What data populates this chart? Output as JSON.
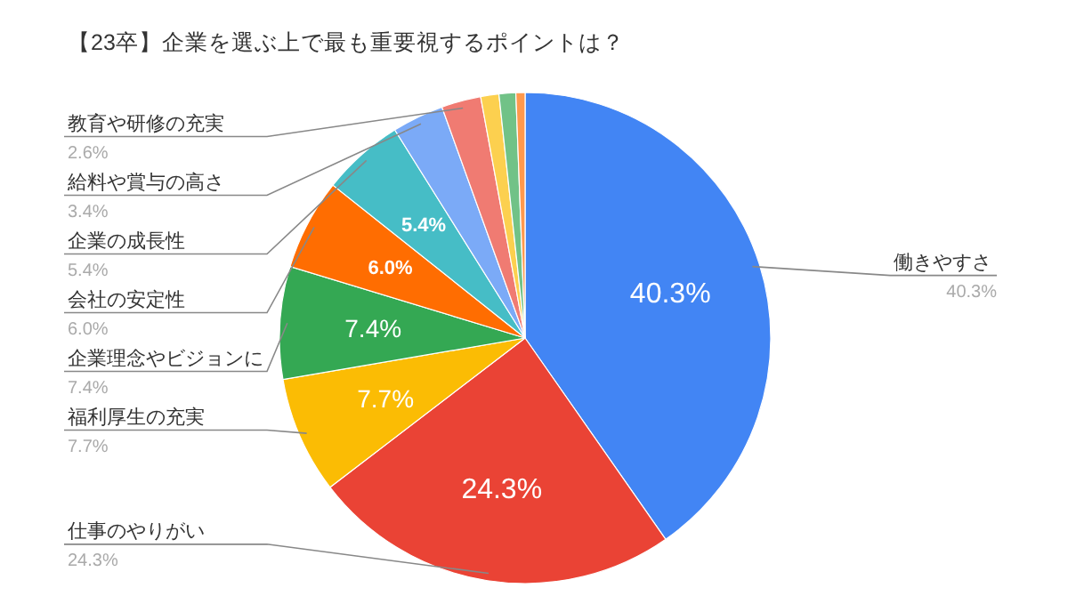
{
  "chart_data": {
    "type": "pie",
    "title": "【23卒】企業を選ぶ上で最も重要視するポイントは？",
    "categories": [
      "働きやすさ",
      "仕事のやりがい",
      "福利厚生の充実",
      "企業理念やビジョンに",
      "会社の安定性",
      "企業の成長性",
      "給料や賞与の高さ",
      "教育や研修の充実",
      null,
      null,
      null
    ],
    "values": [
      40.3,
      24.3,
      7.7,
      7.4,
      6.0,
      5.4,
      3.4,
      2.6,
      1.2,
      1.1,
      0.6
    ],
    "colors": [
      "#4285f4",
      "#ea4335",
      "#fbbc04",
      "#34a853",
      "#ff6d01",
      "#46bdc6",
      "#7baaf7",
      "#f07b72",
      "#fcd04f",
      "#71c287",
      "#ff994d"
    ],
    "value_labels": [
      "40.3%",
      "24.3%",
      "7.7%",
      "7.4%",
      "6.0%",
      "5.4%",
      "3.4%",
      "2.6%",
      null,
      null,
      null
    ]
  }
}
